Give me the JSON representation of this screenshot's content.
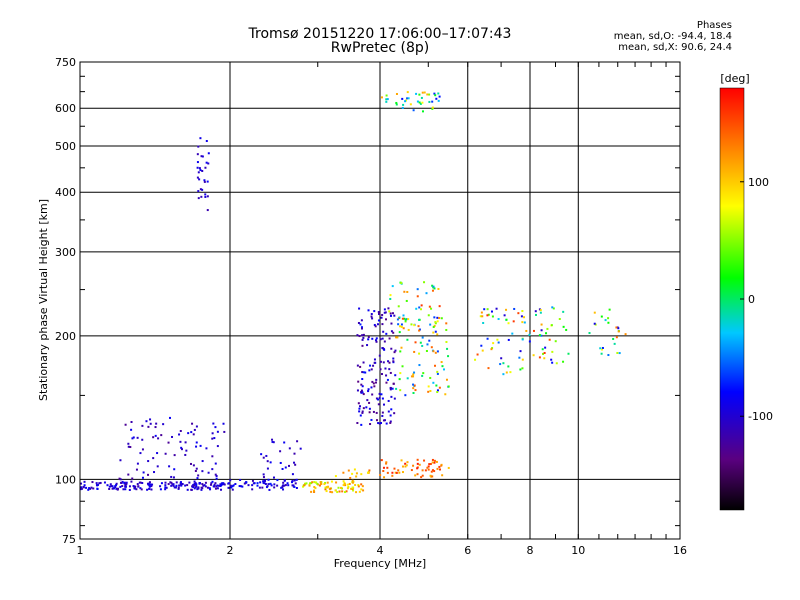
{
  "chart_data": {
    "type": "scatter",
    "title": "Tromsø 20151220 17:06:00–17:07:43",
    "subtitle": "RwPretec (8p)",
    "xlabel": "Frequency [MHz]",
    "ylabel": "Stationary phase Virtual Height [km]",
    "xscale": "log",
    "yscale": "log",
    "xlim": [
      1,
      16
    ],
    "ylim": [
      75,
      750
    ],
    "x_ticks": [
      1,
      2,
      4,
      6,
      8,
      10,
      16
    ],
    "y_ticks": [
      75,
      100,
      200,
      300,
      400,
      500,
      600,
      750
    ],
    "grid": true,
    "stats": {
      "heading": "Phases",
      "o_line": "mean, sd,O: -94.4, 18.4",
      "x_line": "mean, sd,X:  90.6, 24.4"
    },
    "colorbar": {
      "label": "[deg]",
      "range": [
        -180,
        180
      ],
      "ticks": [
        100,
        0,
        -100
      ],
      "colormap": [
        "#000000",
        "#5a0080",
        "#0000ff",
        "#00c8ff",
        "#00ff00",
        "#ffff00",
        "#ff8000",
        "#ff0000"
      ]
    },
    "series": [
      {
        "clusters": [
          {
            "x": [
              1.0,
              1.95
            ],
            "y": [
              95,
              99
            ],
            "n": 180,
            "phase": [
              -115,
              -75
            ]
          },
          {
            "x": [
              1.2,
              1.95
            ],
            "y": [
              100,
              135
            ],
            "n": 90,
            "phase": [
              -120,
              -80
            ]
          },
          {
            "x": [
              1.72,
              1.82
            ],
            "y": [
              365,
              520
            ],
            "n": 30,
            "phase": [
              -110,
              -80
            ]
          },
          {
            "x": [
              1.95,
              2.75
            ],
            "y": [
              95,
              100
            ],
            "n": 70,
            "phase": [
              -110,
              -70
            ]
          },
          {
            "x": [
              2.3,
              2.8
            ],
            "y": [
              100,
              122
            ],
            "n": 25,
            "phase": [
              -110,
              -80
            ]
          },
          {
            "x": [
              2.8,
              3.7
            ],
            "y": [
              94,
              99
            ],
            "n": 80,
            "phase": [
              50,
              140
            ]
          },
          {
            "x": [
              3.2,
              3.95
            ],
            "y": [
              99,
              105
            ],
            "n": 15,
            "phase": [
              60,
              140
            ]
          },
          {
            "x": [
              3.6,
              4.3
            ],
            "y": [
              130,
              230
            ],
            "n": 160,
            "phase": [
              -130,
              -70
            ]
          },
          {
            "x": [
              4.0,
              5.5
            ],
            "y": [
              101,
              110
            ],
            "n": 60,
            "phase": [
              100,
              170
            ]
          },
          {
            "x": [
              4.3,
              5.5
            ],
            "y": [
              150,
              220
            ],
            "n": 90,
            "phase": [
              -80,
              150
            ]
          },
          {
            "x": [
              4.1,
              5.3
            ],
            "y": [
              205,
              260
            ],
            "n": 40,
            "phase": [
              -60,
              160
            ]
          },
          {
            "x": [
              4.0,
              5.3
            ],
            "y": [
              590,
              650
            ],
            "n": 40,
            "phase": [
              -80,
              120
            ]
          },
          {
            "x": [
              6.2,
              7.8
            ],
            "y": [
              165,
              230
            ],
            "n": 50,
            "phase": [
              -100,
              160
            ]
          },
          {
            "x": [
              7.7,
              9.6
            ],
            "y": [
              175,
              230
            ],
            "n": 40,
            "phase": [
              -100,
              160
            ]
          },
          {
            "x": [
              10.5,
              12.5
            ],
            "y": [
              180,
              230
            ],
            "n": 25,
            "phase": [
              -100,
              140
            ]
          }
        ]
      }
    ]
  }
}
